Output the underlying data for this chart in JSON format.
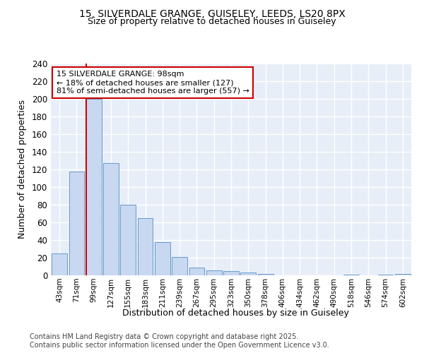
{
  "title1": "15, SILVERDALE GRANGE, GUISELEY, LEEDS, LS20 8PX",
  "title2": "Size of property relative to detached houses in Guiseley",
  "xlabel": "Distribution of detached houses by size in Guiseley",
  "ylabel": "Number of detached properties",
  "categories": [
    "43sqm",
    "71sqm",
    "99sqm",
    "127sqm",
    "155sqm",
    "183sqm",
    "211sqm",
    "239sqm",
    "267sqm",
    "295sqm",
    "323sqm",
    "350sqm",
    "378sqm",
    "406sqm",
    "434sqm",
    "462sqm",
    "490sqm",
    "518sqm",
    "546sqm",
    "574sqm",
    "602sqm"
  ],
  "values": [
    25,
    118,
    200,
    127,
    80,
    65,
    38,
    21,
    9,
    6,
    5,
    3,
    2,
    0,
    0,
    0,
    0,
    1,
    0,
    1,
    2
  ],
  "bar_color": "#c8d8f0",
  "bar_edge_color": "#6699cc",
  "annotation_box_text": "15 SILVERDALE GRANGE: 98sqm\n← 18% of detached houses are smaller (127)\n81% of semi-detached houses are larger (557) →",
  "annotation_box_color": "#cc0000",
  "property_line_index": 2,
  "ylim": [
    0,
    240
  ],
  "yticks": [
    0,
    20,
    40,
    60,
    80,
    100,
    120,
    140,
    160,
    180,
    200,
    220,
    240
  ],
  "plot_bg_color": "#e8eef8",
  "fig_bg_color": "#ffffff",
  "grid_color": "#ffffff",
  "footer_line1": "Contains HM Land Registry data © Crown copyright and database right 2025.",
  "footer_line2": "Contains public sector information licensed under the Open Government Licence v3.0."
}
